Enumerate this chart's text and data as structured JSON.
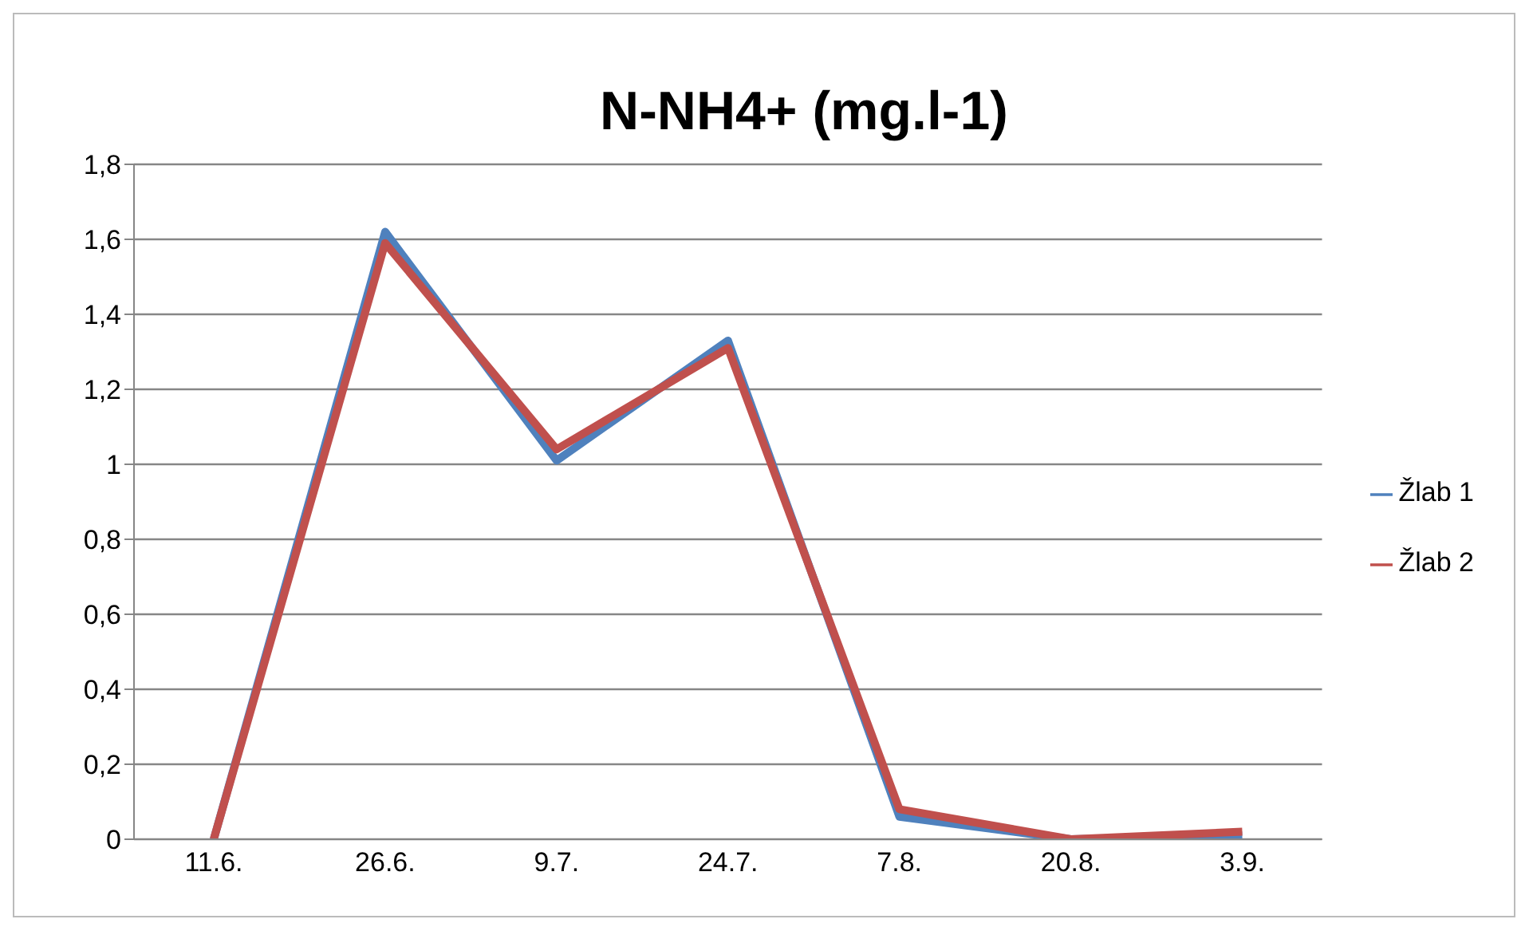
{
  "chart_data": {
    "type": "line",
    "title": "N-NH4+ (mg.l-1)",
    "categories": [
      "11.6.",
      "26.6.",
      "9.7.",
      "24.7.",
      "7.8.",
      "20.8.",
      "3.9."
    ],
    "series": [
      {
        "name": "Žlab 1",
        "color": "#4f81bd",
        "values": [
          0,
          1.62,
          1.01,
          1.33,
          0.06,
          0,
          0.01
        ]
      },
      {
        "name": "Žlab 2",
        "color": "#c0504d",
        "values": [
          0,
          1.59,
          1.04,
          1.31,
          0.08,
          0,
          0.02
        ]
      }
    ],
    "ylim": [
      0,
      1.8
    ],
    "yticks": [
      {
        "value": 0,
        "label": "0"
      },
      {
        "value": 0.2,
        "label": "0,2"
      },
      {
        "value": 0.4,
        "label": "0,4"
      },
      {
        "value": 0.6,
        "label": "0,6"
      },
      {
        "value": 0.8,
        "label": "0,8"
      },
      {
        "value": 1,
        "label": "1"
      },
      {
        "value": 1.2,
        "label": "1,2"
      },
      {
        "value": 1.4,
        "label": "1,4"
      },
      {
        "value": 1.6,
        "label": "1,6"
      },
      {
        "value": 1.8,
        "label": "1,8"
      }
    ],
    "grid": "y",
    "legend": "right",
    "marker": "none",
    "line_style": "solid"
  }
}
